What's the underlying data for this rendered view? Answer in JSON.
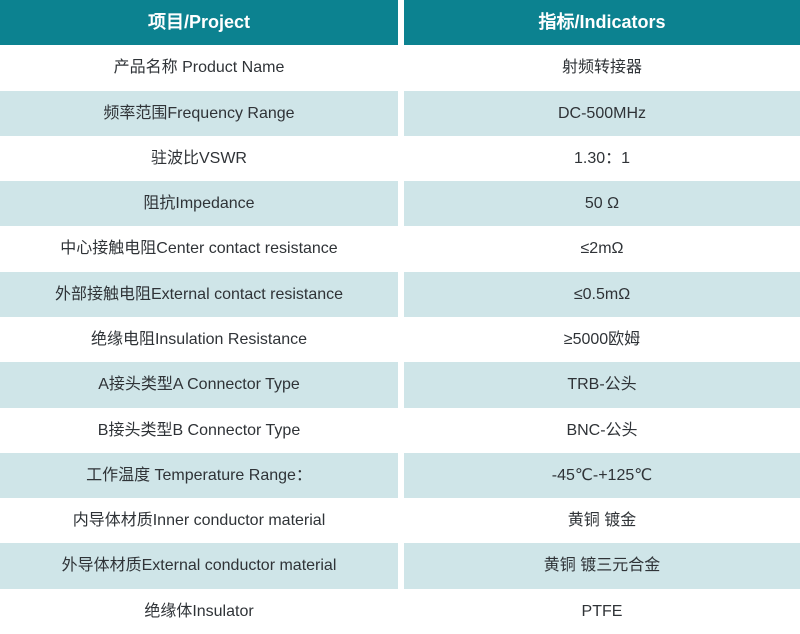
{
  "colors": {
    "header_bg": "#0c8290",
    "header_text": "#ffffff",
    "alt_row_bg": "#cfe5e8",
    "text": "#2f3337"
  },
  "table": {
    "header": {
      "project": "项目/Project",
      "indicators": "指标/Indicators"
    },
    "rows": [
      {
        "project": "产品名称 Product Name",
        "indicator": "射频转接器"
      },
      {
        "project": "频率范围Frequency Range",
        "indicator": "DC-500MHz"
      },
      {
        "project": "驻波比VSWR",
        "indicator": "1.30：1"
      },
      {
        "project": "阻抗Impedance",
        "indicator": "50 Ω"
      },
      {
        "project": "中心接触电阻Center contact resistance",
        "indicator": "≤2mΩ"
      },
      {
        "project": "外部接触电阻External contact resistance",
        "indicator": "≤0.5mΩ"
      },
      {
        "project": "绝缘电阻Insulation Resistance",
        "indicator": "≥5000欧姆"
      },
      {
        "project": "A接头类型A Connector Type",
        "indicator": "TRB-公头"
      },
      {
        "project": "B接头类型B Connector Type",
        "indicator": "BNC-公头"
      },
      {
        "project": "工作温度 Temperature Range：",
        "indicator": "-45℃-+125℃"
      },
      {
        "project": "内导体材质Inner conductor material",
        "indicator": "黄铜 镀金"
      },
      {
        "project": "外导体材质External conductor material",
        "indicator": "黄铜 镀三元合金"
      },
      {
        "project": "绝缘体Insulator",
        "indicator": "PTFE"
      }
    ]
  }
}
